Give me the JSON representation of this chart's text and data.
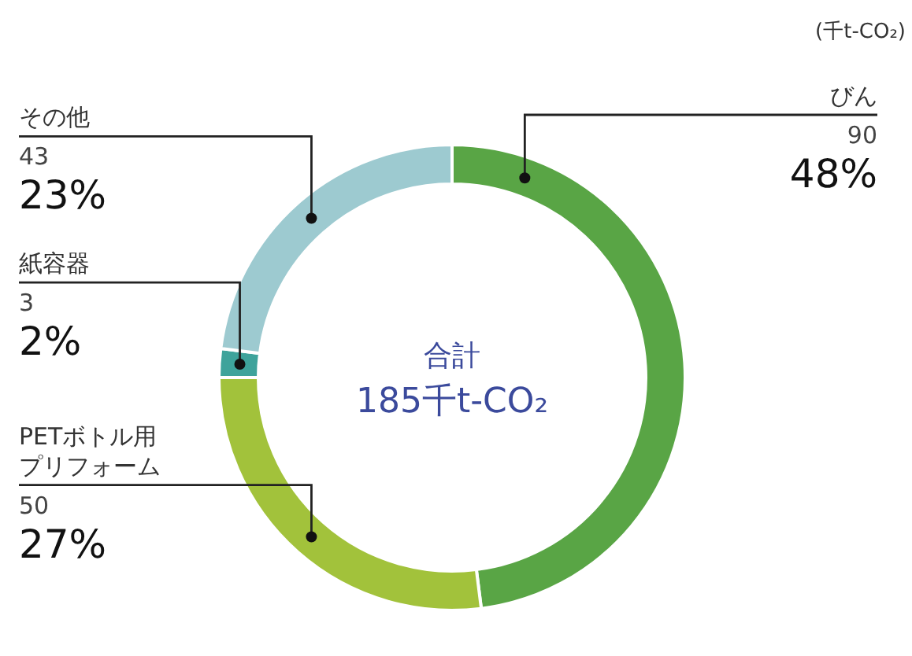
{
  "chart_data": {
    "type": "donut",
    "categories": [
      "びん",
      "PETボトル用プリフォーム",
      "紙容器",
      "その他"
    ],
    "values": [
      48,
      27,
      2,
      23
    ],
    "colors": [
      "#59a545",
      "#a2c23b",
      "#3ea39b",
      "#9dcad0"
    ],
    "value_labels": [
      "48%",
      "27%",
      "2%",
      "23%"
    ],
    "annotations": [
      "(千t-CO₂)",
      "合計",
      "185千t-CO₂",
      {
        "text": "90",
        "x": "びん"
      },
      {
        "text": "50",
        "x": "PETボトル用プリフォーム"
      },
      {
        "text": "3",
        "x": "紙容器"
      },
      {
        "text": "43",
        "x": "その他"
      }
    ]
  }
}
